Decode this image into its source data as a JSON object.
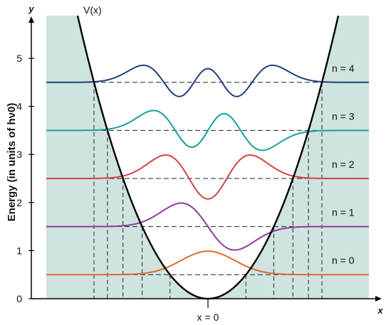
{
  "figure": {
    "potential_label": "V(x)",
    "y_axis_letter": "y",
    "x_axis_letter": "x",
    "y_axis_title": "Energy (in units of hν0)",
    "x_center_label": "x = 0",
    "background_color": "#cfe3df",
    "potential_color": "#000000"
  },
  "chart_data": {
    "type": "line",
    "ylabel": "Energy (in units of hν0)",
    "xlabel": "x",
    "ylim": [
      0,
      5.7
    ],
    "y_ticks": [
      0,
      1,
      2,
      3,
      4,
      5
    ],
    "potential": {
      "name": "V(x)",
      "vertex": [
        0,
        0
      ]
    },
    "levels": [
      {
        "n": 0,
        "label": "n = 0",
        "energy": 0.5,
        "color": "#e06a2a"
      },
      {
        "n": 1,
        "label": "n = 1",
        "energy": 1.5,
        "color": "#8e3c9c"
      },
      {
        "n": 2,
        "label": "n = 2",
        "energy": 2.5,
        "color": "#d04545"
      },
      {
        "n": 3,
        "label": "n = 3",
        "energy": 3.5,
        "color": "#1a9e9a"
      },
      {
        "n": 4,
        "label": "n = 4",
        "energy": 4.5,
        "color": "#1f3f7f"
      }
    ]
  }
}
